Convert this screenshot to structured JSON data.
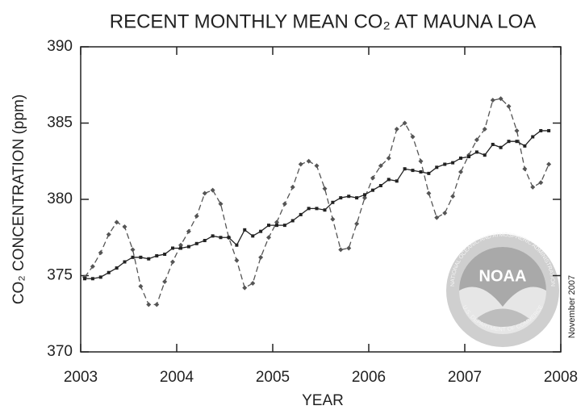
{
  "chart_data": {
    "type": "line",
    "title": "RECENT MONTHLY MEAN CO₂ AT MAUNA LOA",
    "x_label": "YEAR",
    "y_label": "CO₂ CONCENTRATION (ppm)",
    "annotations": [
      "November 2007",
      "NOAA",
      "NATIONAL OCEANIC AND ATMOSPHERIC ADMINISTRATION",
      "U.S. DEPARTMENT OF COMMERCE"
    ],
    "xlim": [
      2003,
      2008
    ],
    "xticks": [
      2003,
      2004,
      2005,
      2006,
      2007,
      2008
    ],
    "ylim": [
      370,
      390
    ],
    "yticks": [
      370,
      375,
      380,
      385,
      390
    ],
    "x": [
      2003.042,
      2003.125,
      2003.208,
      2003.292,
      2003.375,
      2003.458,
      2003.542,
      2003.625,
      2003.708,
      2003.792,
      2003.875,
      2003.958,
      2004.042,
      2004.125,
      2004.208,
      2004.292,
      2004.375,
      2004.458,
      2004.542,
      2004.625,
      2004.708,
      2004.792,
      2004.875,
      2004.958,
      2005.042,
      2005.125,
      2005.208,
      2005.292,
      2005.375,
      2005.458,
      2005.542,
      2005.625,
      2005.708,
      2005.792,
      2005.875,
      2005.958,
      2006.042,
      2006.125,
      2006.208,
      2006.292,
      2006.375,
      2006.458,
      2006.542,
      2006.625,
      2006.708,
      2006.792,
      2006.875,
      2006.958,
      2007.042,
      2007.125,
      2007.208,
      2007.292,
      2007.375,
      2007.458,
      2007.542,
      2007.625,
      2007.708,
      2007.792,
      2007.875
    ],
    "series": [
      {
        "color": "#555555",
        "style": "dashed",
        "marker": "diamond",
        "values": [
          374.9,
          375.6,
          376.5,
          377.7,
          378.5,
          378.2,
          376.7,
          374.3,
          373.1,
          373.1,
          374.6,
          375.9,
          377.0,
          377.9,
          378.9,
          380.4,
          380.6,
          379.7,
          377.5,
          376.0,
          374.2,
          374.5,
          376.2,
          377.5,
          378.5,
          379.7,
          380.8,
          382.3,
          382.5,
          382.2,
          380.7,
          378.7,
          376.7,
          376.8,
          378.4,
          380.1,
          381.4,
          382.2,
          382.7,
          384.6,
          385.0,
          384.1,
          382.5,
          380.4,
          378.8,
          379.1,
          380.2,
          381.8,
          382.9,
          383.9,
          384.6,
          386.5,
          386.6,
          386.1,
          384.5,
          382.0,
          380.8,
          381.1,
          382.3
        ]
      },
      {
        "color": "#222222",
        "style": "solid",
        "marker": "square",
        "values": [
          374.8,
          374.8,
          374.9,
          375.2,
          375.5,
          375.9,
          376.2,
          376.2,
          376.1,
          376.3,
          376.4,
          376.8,
          376.8,
          376.9,
          377.1,
          377.3,
          377.6,
          377.5,
          377.5,
          377.0,
          378.0,
          377.6,
          377.9,
          378.3,
          378.3,
          378.3,
          378.6,
          379.0,
          379.4,
          379.4,
          379.3,
          379.8,
          380.1,
          380.2,
          380.1,
          380.3,
          380.6,
          380.9,
          381.3,
          381.2,
          382.0,
          381.9,
          381.8,
          381.7,
          382.1,
          382.3,
          382.4,
          382.7,
          382.8,
          383.1,
          382.9,
          383.6,
          383.4,
          383.8,
          383.8,
          383.5,
          384.1,
          384.5,
          384.5
        ]
      }
    ]
  }
}
